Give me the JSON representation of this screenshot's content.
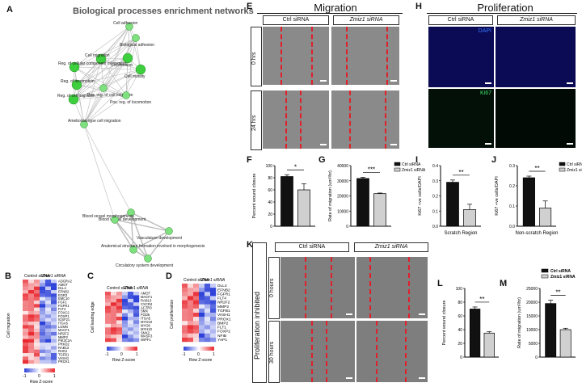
{
  "panels": {
    "A": {
      "letter": "A",
      "title": "Biological processes enrichment networks",
      "nodes": [
        "Cell adhesion",
        "Biological adhesion",
        "Cell migration",
        "Locomotion",
        "Reg. of cellular component movement",
        "Cell motility",
        "Reg. of locomotion",
        "Pos. reg. of cell migration",
        "Reg. of cell migration",
        "Pos. reg. of locomotion",
        "Ameboidal-type cell migration",
        "Blood vessel development",
        "Blood vessel morphogenesis",
        "Vasculature development",
        "Anatomical structure formation involved in morphogenesis",
        "Circulatory system development"
      ]
    },
    "B": {
      "letter": "B",
      "col_labels": [
        "Control siRNA",
        "Zmiz1 siRNA"
      ],
      "side_label": "Cell migration",
      "genes": [
        "ADGRA2",
        "AMOT",
        "DLL4",
        "EFNB2",
        "EGR3",
        "EMC10",
        "FGF2",
        "FGFR1",
        "FLT4",
        "FOXC2",
        "FOXP1",
        "IGSF21",
        "ITGA5",
        "LGMN",
        "MACF1",
        "NR2F2",
        "MMP2",
        "PIK3C2A",
        "PRKD2",
        "RAB13",
        "RHOJ",
        "TGFB1",
        "VASH1",
        "PROX1"
      ],
      "scale_label": "Row Z-score",
      "ticks": [
        "-1",
        "0",
        "1"
      ]
    },
    "C": {
      "letter": "C",
      "col_labels": [
        "Control siRNA",
        "Zmiz1 siRNA"
      ],
      "side_label": "Cell leading edge",
      "genes": [
        "AMOT",
        "MACF1",
        "RAB13",
        "CXCR4",
        "ACTR3",
        "SMX",
        "FGD5",
        "ITGA5",
        "MYO10",
        "MYO6",
        "MYH10",
        "SNX2",
        "WASF3",
        "WIPF1"
      ],
      "scale_label": "Row Z-score",
      "ticks": [
        "-1",
        "0",
        "1"
      ]
    },
    "D": {
      "letter": "D",
      "col_labels": [
        "Control siRNA",
        "Zmiz1 siRNA"
      ],
      "side_label": "Cell proliferation",
      "genes": [
        "DLL4",
        "EFNB2",
        "FGFR1",
        "FLT4",
        "NR2F2",
        "MMP2",
        "TGFB1",
        "VASH1",
        "PROX1",
        "BMP2",
        "FLT1",
        "FOXP2",
        "NFIB",
        "YAP1"
      ],
      "scale_label": "Row Z-score",
      "ticks": [
        "-1",
        "0",
        "1"
      ]
    },
    "E": {
      "letter": "E",
      "title": "Migration",
      "cols": [
        "Ctrl siRNA",
        "Zmiz1 siRNA"
      ],
      "rows": [
        "0 hrs",
        "24 hrs"
      ]
    },
    "F": {
      "letter": "F",
      "ylabel": "Percent wound closure",
      "sig": "*"
    },
    "G": {
      "letter": "G",
      "ylabel": "Rate of migration (um²/hr)",
      "sig": "***",
      "legend": [
        "Ctrl siRNA",
        "Zmiz1 siRNA"
      ]
    },
    "H": {
      "letter": "H",
      "title": "Proliferation",
      "cols": [
        "Ctrl siRNA",
        "Zmiz1 siRNA"
      ],
      "stains": [
        "DAPI",
        "Ki67"
      ]
    },
    "I": {
      "letter": "I",
      "ylabel": "Ki67 +ve cells/DAPI",
      "xlabel": "Scratch Region",
      "sig": "**"
    },
    "J": {
      "letter": "J",
      "ylabel": "Ki67 +ve cells/DAPI",
      "xlabel": "Non-scratch Region",
      "sig": "**",
      "legend": [
        "Ctrl siRNA",
        "Zmiz1 siRNA"
      ]
    },
    "K": {
      "letter": "K",
      "side_title": "Proliferation inhibited",
      "cols": [
        "Ctrl siRNA",
        "Zmiz1 siRNA"
      ],
      "rows": [
        "0 hours",
        "30 hours"
      ]
    },
    "L": {
      "letter": "L",
      "ylabel": "Percent wound closure",
      "sig": "**"
    },
    "M": {
      "letter": "M",
      "ylabel": "Rate of migration (um²/hr)",
      "sig": "**",
      "legend": [
        "Ctrl siRNA",
        "Zmiz1 siRNA"
      ]
    }
  },
  "colors": {
    "ctrl": "#111111",
    "zmiz": "#d0d0d0",
    "high": "#e8232a",
    "low": "#2a3fd8",
    "node": "#7ee07e"
  },
  "chart_data": [
    {
      "id": "F",
      "type": "bar",
      "categories": [
        "Ctrl siRNA",
        "Zmiz1 siRNA"
      ],
      "values": [
        82,
        60
      ],
      "errors": [
        3,
        10
      ],
      "ylim": [
        0,
        100
      ],
      "yticks": [
        "0",
        "20",
        "40",
        "60",
        "80",
        "100"
      ],
      "ylabel": "Percent wound closure"
    },
    {
      "id": "G",
      "type": "bar",
      "categories": [
        "Ctrl siRNA",
        "Zmiz1 siRNA"
      ],
      "values": [
        31500,
        21500
      ],
      "errors": [
        800,
        400
      ],
      "ylim": [
        0,
        40000
      ],
      "yticks": [
        "0",
        "10000",
        "20000",
        "30000",
        "40000"
      ],
      "ylabel": "Rate of migration (um²/hr)"
    },
    {
      "id": "I",
      "type": "bar",
      "categories": [
        "Ctrl siRNA",
        "Zmiz1 siRNA"
      ],
      "values": [
        0.29,
        0.11
      ],
      "errors": [
        0.015,
        0.035
      ],
      "ylim": [
        0,
        0.4
      ],
      "yticks": [
        "0.0",
        "0.1",
        "0.2",
        "0.3",
        "0.4"
      ],
      "ylabel": "Ki67 +ve cells/DAPI",
      "xlabel": "Scratch Region"
    },
    {
      "id": "J",
      "type": "bar",
      "categories": [
        "Ctrl siRNA",
        "Zmiz1 siRNA"
      ],
      "values": [
        0.24,
        0.09
      ],
      "errors": [
        0.008,
        0.035
      ],
      "ylim": [
        0,
        0.3
      ],
      "yticks": [
        "0.0",
        "0.1",
        "0.2",
        "0.3"
      ],
      "ylabel": "Ki67 +ve cells/DAPI",
      "xlabel": "Non-scratch Region"
    },
    {
      "id": "L",
      "type": "bar",
      "categories": [
        "Ctrl siRNA",
        "Zmiz1 siRNA"
      ],
      "values": [
        70,
        35
      ],
      "errors": [
        3,
        2
      ],
      "ylim": [
        0,
        100
      ],
      "yticks": [
        "0",
        "20",
        "40",
        "60",
        "80",
        "100"
      ],
      "ylabel": "Percent wound closure"
    },
    {
      "id": "M",
      "type": "bar",
      "categories": [
        "Ctrl siRNA",
        "Zmiz1 siRNA"
      ],
      "values": [
        19500,
        10000
      ],
      "errors": [
        1200,
        500
      ],
      "ylim": [
        0,
        25000
      ],
      "yticks": [
        "0",
        "5000",
        "10000",
        "15000",
        "20000",
        "25000"
      ],
      "ylabel": "Rate of migration (um²/hr)"
    }
  ]
}
